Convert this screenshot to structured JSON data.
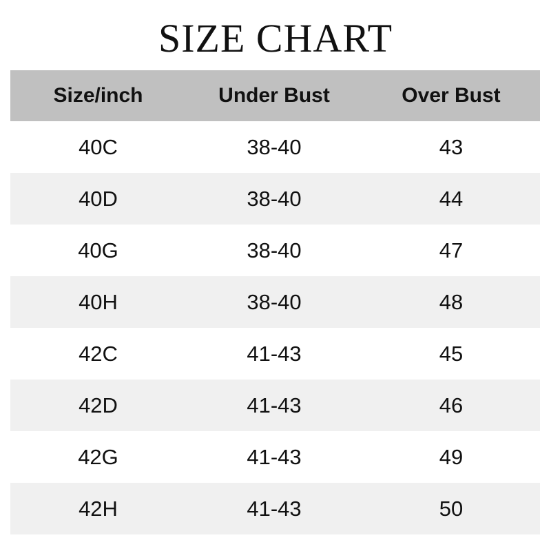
{
  "title": "SIZE CHART",
  "colors": {
    "header_bg": "#c0c0c0",
    "alt_row_bg": "#f0f0f0"
  },
  "table": {
    "headers": [
      "Size/inch",
      "Under Bust",
      "Over Bust"
    ],
    "rows": [
      [
        "40C",
        "38-40",
        "43"
      ],
      [
        "40D",
        "38-40",
        "44"
      ],
      [
        "40G",
        "38-40",
        "47"
      ],
      [
        "40H",
        "38-40",
        "48"
      ],
      [
        "42C",
        "41-43",
        "45"
      ],
      [
        "42D",
        "41-43",
        "46"
      ],
      [
        "42G",
        "41-43",
        "49"
      ],
      [
        "42H",
        "41-43",
        "50"
      ]
    ]
  }
}
